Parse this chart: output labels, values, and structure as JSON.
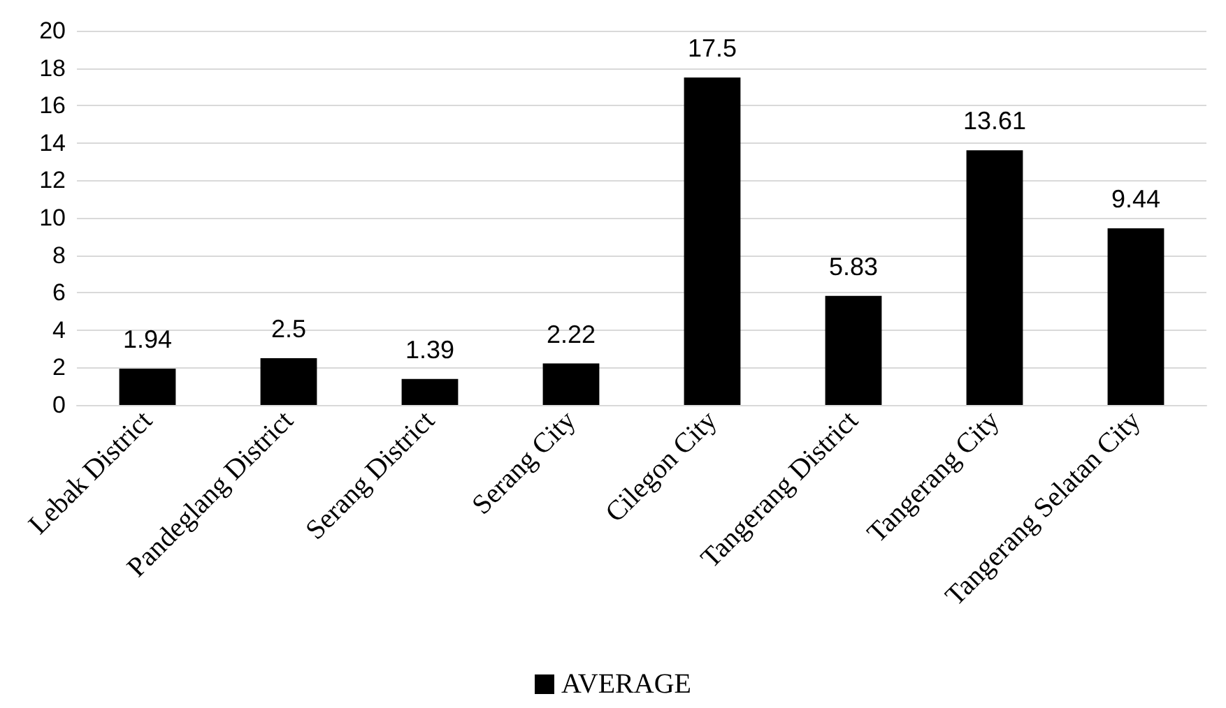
{
  "chart_data": {
    "type": "bar",
    "categories": [
      "Lebak District",
      "Pandeglang District",
      "Serang District",
      "Serang City",
      "Cilegon City",
      "Tangerang District",
      "Tangerang City",
      "Tangerang Selatan City"
    ],
    "series": [
      {
        "name": "AVERAGE",
        "color": "#000000",
        "values": [
          1.94,
          2.5,
          1.39,
          2.22,
          17.5,
          5.83,
          13.61,
          9.44
        ]
      }
    ],
    "ylim": [
      0,
      20
    ],
    "yticks": [
      0,
      2,
      4,
      6,
      8,
      10,
      12,
      14,
      16,
      18,
      20
    ],
    "grid": "y",
    "legend": "bottom",
    "data_labels": true
  }
}
